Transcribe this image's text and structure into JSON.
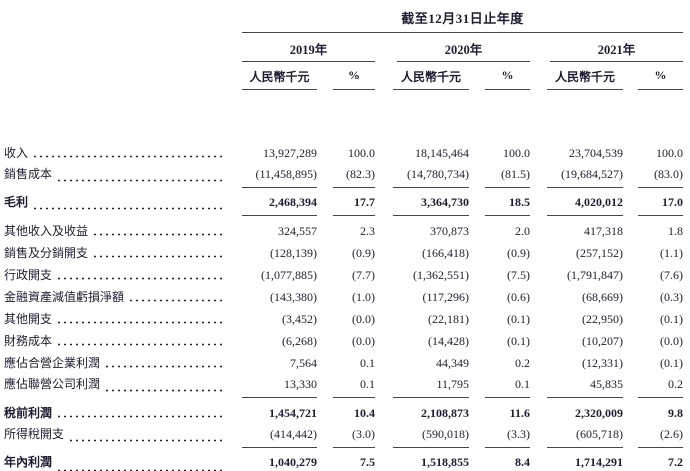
{
  "document": {
    "title": "截至12月31日止年度",
    "year_groups": [
      {
        "year": "2019年",
        "unit": "人民幣千元",
        "pct": "%"
      },
      {
        "year": "2020年",
        "unit": "人民幣千元",
        "pct": "%"
      },
      {
        "year": "2021年",
        "unit": "人民幣千元",
        "pct": "%"
      }
    ],
    "rows": [
      {
        "label": "收入",
        "cells": [
          "13,927,289",
          "100.0",
          "18,145,464",
          "100.0",
          "23,704,539",
          "100.0"
        ],
        "bold": false,
        "rule_below": false,
        "double_rule_below": false,
        "gap_before": false
      },
      {
        "label": "銷售成本",
        "cells": [
          "(11,458,895)",
          "(82.3)",
          "(14,780,734)",
          "(81.5)",
          "(19,684,527)",
          "(83.0)"
        ],
        "bold": false,
        "rule_below": true,
        "double_rule_below": false,
        "gap_before": false
      },
      {
        "label": "毛利",
        "cells": [
          "2,468,394",
          "17.7",
          "3,364,730",
          "18.5",
          "4,020,012",
          "17.0"
        ],
        "bold": true,
        "rule_below": true,
        "double_rule_below": false,
        "gap_before": true
      },
      {
        "label": "其他收入及收益",
        "cells": [
          "324,557",
          "2.3",
          "370,873",
          "2.0",
          "417,318",
          "1.8"
        ],
        "bold": false,
        "rule_below": false,
        "double_rule_below": false,
        "gap_before": true
      },
      {
        "label": "銷售及分銷開支",
        "cells": [
          "(128,139)",
          "(0.9)",
          "(166,418)",
          "(0.9)",
          "(257,152)",
          "(1.1)"
        ],
        "bold": false,
        "rule_below": false,
        "double_rule_below": false,
        "gap_before": false
      },
      {
        "label": "行政開支",
        "cells": [
          "(1,077,885)",
          "(7.7)",
          "(1,362,551)",
          "(7.5)",
          "(1,791,847)",
          "(7.6)"
        ],
        "bold": false,
        "rule_below": false,
        "double_rule_below": false,
        "gap_before": false
      },
      {
        "label": "金融資產減值虧損淨額",
        "cells": [
          "(143,380)",
          "(1.0)",
          "(117,296)",
          "(0.6)",
          "(68,669)",
          "(0.3)"
        ],
        "bold": false,
        "rule_below": false,
        "double_rule_below": false,
        "gap_before": false
      },
      {
        "label": "其他開支",
        "cells": [
          "(3,452)",
          "(0.0)",
          "(22,181)",
          "(0.1)",
          "(22,950)",
          "(0.1)"
        ],
        "bold": false,
        "rule_below": false,
        "double_rule_below": false,
        "gap_before": false
      },
      {
        "label": "財務成本",
        "cells": [
          "(6,268)",
          "(0.0)",
          "(14,428)",
          "(0.1)",
          "(10,207)",
          "(0.0)"
        ],
        "bold": false,
        "rule_below": false,
        "double_rule_below": false,
        "gap_before": false
      },
      {
        "label": "應佔合營企業利潤",
        "cells": [
          "7,564",
          "0.1",
          "44,349",
          "0.2",
          "(12,331)",
          "(0.1)"
        ],
        "bold": false,
        "rule_below": false,
        "double_rule_below": false,
        "gap_before": false
      },
      {
        "label": "應佔聯營公司利潤",
        "cells": [
          "13,330",
          "0.1",
          "11,795",
          "0.1",
          "45,835",
          "0.2"
        ],
        "bold": false,
        "rule_below": true,
        "double_rule_below": false,
        "gap_before": false
      },
      {
        "label": "稅前利潤",
        "cells": [
          "1,454,721",
          "10.4",
          "2,108,873",
          "11.6",
          "2,320,009",
          "9.8"
        ],
        "bold": true,
        "rule_below": false,
        "double_rule_below": false,
        "gap_before": true
      },
      {
        "label": "所得稅開支",
        "cells": [
          "(414,442)",
          "(3.0)",
          "(590,018)",
          "(3.3)",
          "(605,718)",
          "(2.6)"
        ],
        "bold": false,
        "rule_below": true,
        "double_rule_below": false,
        "gap_before": false
      },
      {
        "label": "年內利潤",
        "cells": [
          "1,040,279",
          "7.5",
          "1,518,855",
          "8.4",
          "1,714,291",
          "7.2"
        ],
        "bold": true,
        "rule_below": false,
        "double_rule_below": true,
        "gap_before": true
      }
    ]
  },
  "colors": {
    "text": "#1d1d33",
    "thin_rule": "#45454f",
    "heavy_rule": "#12121c",
    "background": "#ffffff"
  }
}
